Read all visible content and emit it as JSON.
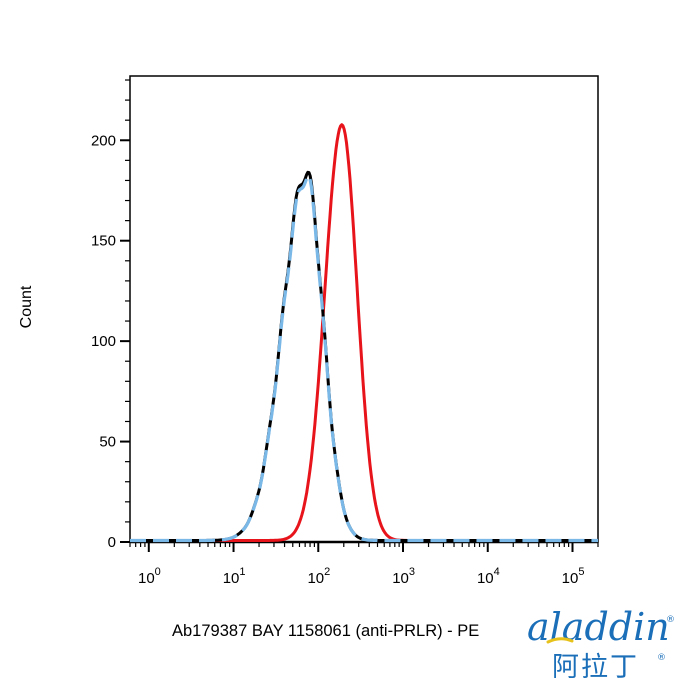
{
  "chart_data": {
    "type": "line",
    "xlabel": "Ab179387 BAY 1158061 (anti-PRLR) - PE",
    "ylabel": "Count",
    "xscale": "log",
    "xlim": [
      0.6,
      200000
    ],
    "ylim": [
      0,
      232
    ],
    "grid": false,
    "x_ticks": [
      {
        "value": 1,
        "base": "10",
        "exp": "0"
      },
      {
        "value": 10,
        "base": "10",
        "exp": "1"
      },
      {
        "value": 100,
        "base": "10",
        "exp": "2"
      },
      {
        "value": 1000,
        "base": "10",
        "exp": "3"
      },
      {
        "value": 10000,
        "base": "10",
        "exp": "4"
      },
      {
        "value": 100000,
        "base": "10",
        "exp": "5"
      }
    ],
    "y_ticks": [
      {
        "value": 0,
        "label": "0"
      },
      {
        "value": 50,
        "label": "50"
      },
      {
        "value": 100,
        "label": "100"
      },
      {
        "value": 150,
        "label": "150"
      },
      {
        "value": 200,
        "label": "200"
      }
    ],
    "series": [
      {
        "color": "#e8141c",
        "style": "solid",
        "points": [
          [
            0.6,
            0
          ],
          [
            100000,
            0
          ],
          [
            200000,
            0
          ]
        ],
        "peak": {
          "center": 190,
          "sigma_left": 0.2,
          "sigma_right": 0.18,
          "height": 207
        }
      },
      {
        "color": "#000000",
        "style": "solid",
        "peak": {
          "center": 72,
          "sigma_left": 0.28,
          "sigma_right": 0.2,
          "height": 183
        }
      },
      {
        "color": "#7ab8e8",
        "style": "dashed",
        "peak": {
          "center": 72,
          "sigma_left": 0.28,
          "sigma_right": 0.2,
          "height": 181
        }
      }
    ]
  },
  "logo": {
    "text": "aladdin",
    "subtext": "阿拉丁",
    "registered": "®",
    "color": "#1b6fb8",
    "accent": "#e7c21a"
  }
}
